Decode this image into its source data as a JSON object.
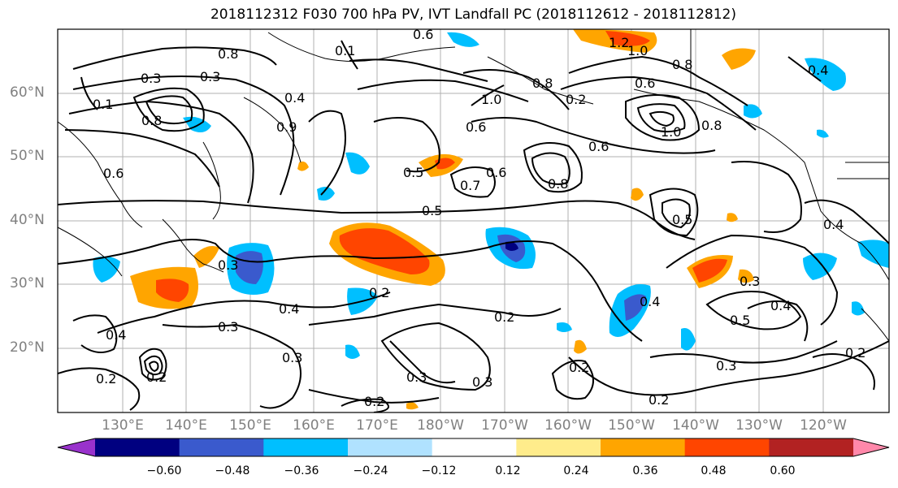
{
  "title": "2018112312 F030 700 hPa PV, IVT Landfall PC (2018112612 - 2018112812)",
  "lat_labels": [
    "60°N",
    "50°N",
    "40°N",
    "30°N",
    "20°N"
  ],
  "lon_labels": [
    "130°E",
    "140°E",
    "150°E",
    "160°E",
    "170°E",
    "180°W",
    "170°W",
    "160°W",
    "150°W",
    "140°W",
    "130°W",
    "120°W"
  ],
  "colorbar": {
    "colors": [
      "#9932cc",
      "#000080",
      "#3a5acd",
      "#00bfff",
      "#b0e2ff",
      "#ffffff",
      "#ffec8b",
      "#ffa500",
      "#ff4500",
      "#b22222",
      "#ff88aa"
    ],
    "ticks": [
      "−0.60",
      "−0.48",
      "−0.36",
      "−0.24",
      "−0.12",
      "0.12",
      "0.24",
      "0.36",
      "0.48",
      "0.60"
    ]
  },
  "contour_labels": [
    "0.8",
    "0.3",
    "0.1",
    "0.4",
    "0.8",
    "0.9",
    "0.6",
    "0.3",
    "0.6",
    "0.5",
    "0.7",
    "0.8",
    "0.1",
    "1.0",
    "0.6",
    "0.8",
    "1.2",
    "1.0",
    "0.8",
    "1.0",
    "0.6",
    "0.6",
    "0.8",
    "0.5",
    "0.6",
    "0.4",
    "0.5",
    "0.3",
    "0.4",
    "0.3",
    "0.2",
    "0.4",
    "0.2",
    "0.3",
    "0.2",
    "0.4",
    "0.3",
    "0.2",
    "0.3",
    "0.5",
    "0.4",
    "0.3",
    "0.3",
    "0.2",
    "0.2",
    "0.2",
    "0.2",
    "0.4",
    "0.2"
  ]
}
